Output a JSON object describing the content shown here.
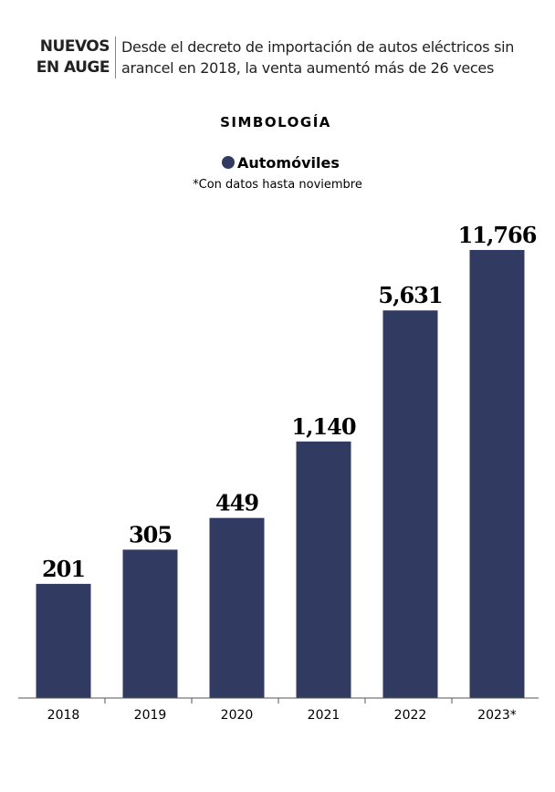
{
  "chart_data": {
    "type": "bar",
    "title": "NUEVOS EN AUGE",
    "subtitle": "Desde el decreto de importación de autos eléctricos sin arancel en 2018, la venta aumentó más de 26 veces",
    "legend_title": "SIMBOLOGÍA",
    "note": "*Con datos hasta noviembre",
    "categories": [
      "2018",
      "2019",
      "2020",
      "2021",
      "2022",
      "2023*"
    ],
    "series": [
      {
        "name": "Automóviles",
        "color": "#313a61",
        "values": [
          201,
          305,
          449,
          1140,
          5631,
          11766
        ],
        "value_labels": [
          "201",
          "305",
          "449",
          "1,140",
          "5,631",
          "11,766"
        ]
      }
    ],
    "log_scale": true,
    "ylim": [
      50,
      13000
    ]
  }
}
